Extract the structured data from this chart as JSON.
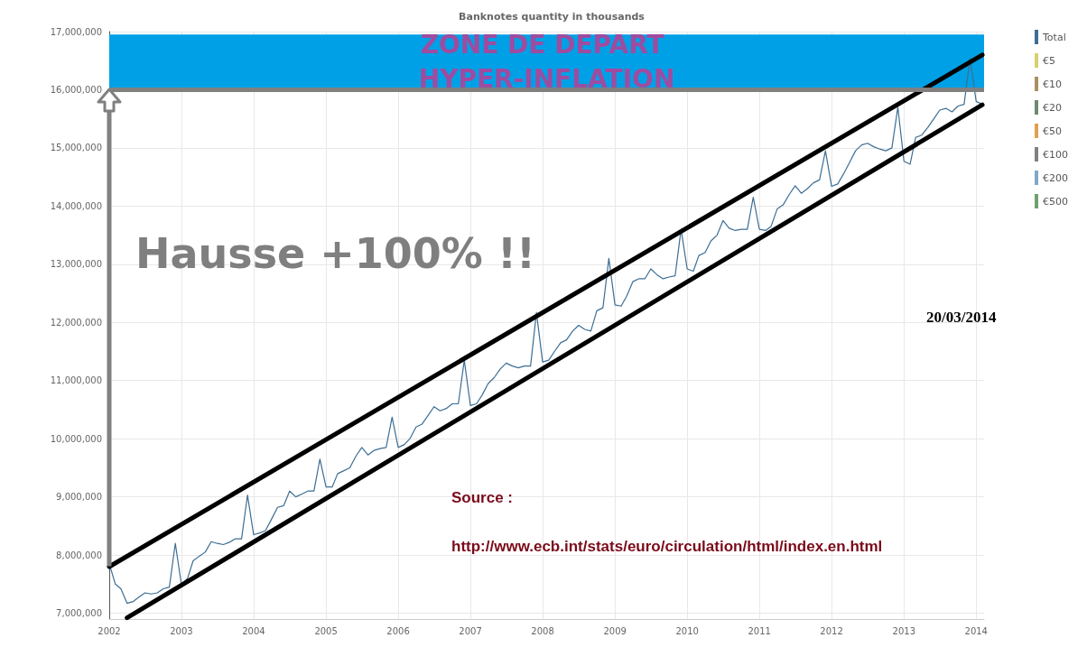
{
  "chart_data": {
    "type": "line",
    "title": "Banknotes quantity in thousands",
    "xlim": [
      "2002-01-01",
      "2014-02-10"
    ],
    "xticks": [
      {
        "value": "2002-01-01",
        "label": "2002"
      },
      {
        "value": "2003-01-01",
        "label": "2003"
      },
      {
        "value": "2004-01-01",
        "label": "2004"
      },
      {
        "value": "2005-01-01",
        "label": "2005"
      },
      {
        "value": "2006-01-01",
        "label": "2006"
      },
      {
        "value": "2007-01-01",
        "label": "2007"
      },
      {
        "value": "2008-01-01",
        "label": "2008"
      },
      {
        "value": "2009-01-01",
        "label": "2009"
      },
      {
        "value": "2010-01-01",
        "label": "2010"
      },
      {
        "value": "2011-01-01",
        "label": "2011"
      },
      {
        "value": "2012-01-01",
        "label": "2012"
      },
      {
        "value": "2013-01-01",
        "label": "2013"
      },
      {
        "value": "2014-01-01",
        "label": "2014"
      }
    ],
    "ylim": [
      6900000,
      17000000
    ],
    "yticks": [
      {
        "value": 7000000,
        "label": "7,000,000"
      },
      {
        "value": 8000000,
        "label": "8,000,000"
      },
      {
        "value": 9000000,
        "label": "9,000,000"
      },
      {
        "value": 10000000,
        "label": "10,000,000"
      },
      {
        "value": 11000000,
        "label": "11,000,000"
      },
      {
        "value": 12000000,
        "label": "12,000,000"
      },
      {
        "value": 13000000,
        "label": "13,000,000"
      },
      {
        "value": 14000000,
        "label": "14,000,000"
      },
      {
        "value": 15000000,
        "label": "15,000,000"
      },
      {
        "value": 16000000,
        "label": "16,000,000"
      },
      {
        "value": 17000000,
        "label": "17,000,000"
      }
    ],
    "x": [
      "2002-01",
      "2002-02",
      "2002-03",
      "2002-04",
      "2002-05",
      "2002-06",
      "2002-07",
      "2002-08",
      "2002-09",
      "2002-10",
      "2002-11",
      "2002-12",
      "2003-01",
      "2003-02",
      "2003-03",
      "2003-04",
      "2003-05",
      "2003-06",
      "2003-07",
      "2003-08",
      "2003-09",
      "2003-10",
      "2003-11",
      "2003-12",
      "2004-01",
      "2004-02",
      "2004-03",
      "2004-04",
      "2004-05",
      "2004-06",
      "2004-07",
      "2004-08",
      "2004-09",
      "2004-10",
      "2004-11",
      "2004-12",
      "2005-01",
      "2005-02",
      "2005-03",
      "2005-04",
      "2005-05",
      "2005-06",
      "2005-07",
      "2005-08",
      "2005-09",
      "2005-10",
      "2005-11",
      "2005-12",
      "2006-01",
      "2006-02",
      "2006-03",
      "2006-04",
      "2006-05",
      "2006-06",
      "2006-07",
      "2006-08",
      "2006-09",
      "2006-10",
      "2006-11",
      "2006-12",
      "2007-01",
      "2007-02",
      "2007-03",
      "2007-04",
      "2007-05",
      "2007-06",
      "2007-07",
      "2007-08",
      "2007-09",
      "2007-10",
      "2007-11",
      "2007-12",
      "2008-01",
      "2008-02",
      "2008-03",
      "2008-04",
      "2008-05",
      "2008-06",
      "2008-07",
      "2008-08",
      "2008-09",
      "2008-10",
      "2008-11",
      "2008-12",
      "2009-01",
      "2009-02",
      "2009-03",
      "2009-04",
      "2009-05",
      "2009-06",
      "2009-07",
      "2009-08",
      "2009-09",
      "2009-10",
      "2009-11",
      "2009-12",
      "2010-01",
      "2010-02",
      "2010-03",
      "2010-04",
      "2010-05",
      "2010-06",
      "2010-07",
      "2010-08",
      "2010-09",
      "2010-10",
      "2010-11",
      "2010-12",
      "2011-01",
      "2011-02",
      "2011-03",
      "2011-04",
      "2011-05",
      "2011-06",
      "2011-07",
      "2011-08",
      "2011-09",
      "2011-10",
      "2011-11",
      "2011-12",
      "2012-01",
      "2012-02",
      "2012-03",
      "2012-04",
      "2012-05",
      "2012-06",
      "2012-07",
      "2012-08",
      "2012-09",
      "2012-10",
      "2012-11",
      "2012-12",
      "2013-01",
      "2013-02",
      "2013-03",
      "2013-04",
      "2013-05",
      "2013-06",
      "2013-07",
      "2013-08",
      "2013-09",
      "2013-10",
      "2013-11",
      "2013-12",
      "2014-01",
      "2014-02"
    ],
    "series": [
      {
        "name": "Total",
        "color": "#3d6e94",
        "values": [
          7850000,
          7500000,
          7420000,
          7170000,
          7200000,
          7280000,
          7350000,
          7330000,
          7350000,
          7420000,
          7450000,
          8200000,
          7490000,
          7600000,
          7900000,
          7980000,
          8050000,
          8230000,
          8200000,
          8180000,
          8220000,
          8280000,
          8280000,
          9030000,
          8350000,
          8380000,
          8420000,
          8620000,
          8820000,
          8850000,
          9100000,
          9000000,
          9050000,
          9100000,
          9100000,
          9650000,
          9170000,
          9170000,
          9400000,
          9450000,
          9500000,
          9700000,
          9850000,
          9720000,
          9800000,
          9830000,
          9850000,
          10370000,
          9850000,
          9900000,
          10000000,
          10200000,
          10250000,
          10400000,
          10550000,
          10480000,
          10520000,
          10600000,
          10600000,
          11350000,
          10570000,
          10600000,
          10750000,
          10950000,
          11050000,
          11200000,
          11300000,
          11250000,
          11220000,
          11250000,
          11250000,
          12170000,
          11320000,
          11350000,
          11500000,
          11650000,
          11700000,
          11850000,
          11950000,
          11880000,
          11850000,
          12200000,
          12250000,
          13100000,
          12300000,
          12280000,
          12450000,
          12700000,
          12750000,
          12750000,
          12920000,
          12820000,
          12750000,
          12780000,
          12800000,
          13600000,
          12920000,
          12880000,
          13150000,
          13200000,
          13400000,
          13500000,
          13750000,
          13620000,
          13580000,
          13600000,
          13600000,
          14150000,
          13600000,
          13580000,
          13650000,
          13950000,
          14020000,
          14200000,
          14350000,
          14220000,
          14300000,
          14400000,
          14450000,
          14950000,
          14340000,
          14380000,
          14550000,
          14750000,
          14950000,
          15050000,
          15080000,
          15020000,
          14980000,
          14950000,
          15000000,
          15700000,
          14770000,
          14720000,
          15180000,
          15220000,
          15350000,
          15500000,
          15650000,
          15680000,
          15620000,
          15720000,
          15750000,
          16540000,
          15800000,
          15750000
        ]
      },
      {
        "type": "line",
        "color": "#000000",
        "x": [
          "2002-01",
          "2014-02"
        ],
        "values": [
          7800000,
          16600000
        ]
      },
      {
        "type": "line",
        "color": "#000000",
        "x": [
          "2002-04",
          "2014-02"
        ],
        "values": [
          6920000,
          15740000
        ]
      },
      {
        "name": "€5",
        "color": "#d8d070",
        "values": [
          null,
          null,
          null,
          null,
          null,
          null,
          null,
          null,
          null,
          null,
          null,
          null,
          null,
          null,
          null,
          null,
          null,
          null,
          null,
          null,
          null,
          null,
          null,
          null,
          null,
          null,
          null,
          null,
          null,
          null,
          null,
          null,
          null,
          null,
          null,
          null,
          null,
          null,
          null,
          null,
          null,
          null,
          null,
          null,
          null,
          null,
          null,
          null,
          null,
          null,
          null,
          null,
          null,
          null,
          null,
          null,
          null,
          null,
          null,
          null,
          null,
          null,
          null,
          null,
          null,
          null,
          null,
          null,
          null,
          null,
          null,
          null,
          null,
          null,
          null,
          null,
          null,
          null,
          null,
          null,
          null,
          null,
          null,
          null,
          null,
          null,
          null,
          null,
          null,
          null,
          null,
          null,
          null,
          null,
          null,
          null,
          null,
          null,
          null,
          null,
          null,
          null,
          null,
          null,
          null,
          null,
          null,
          null,
          null,
          null,
          null,
          null,
          null,
          null,
          null,
          null,
          null,
          null,
          null,
          null,
          null,
          null,
          null,
          null,
          null,
          null,
          null,
          null,
          null,
          null,
          null,
          null,
          null,
          null,
          null,
          null,
          null,
          null,
          null,
          null,
          null,
          null,
          null,
          null,
          null,
          null
        ]
      },
      {
        "name": "€10",
        "color": "#a89060",
        "values": [
          null,
          null,
          null,
          null,
          null,
          null,
          null,
          null,
          null,
          null,
          null,
          null,
          null,
          null,
          null,
          null,
          null,
          null,
          null,
          null,
          null,
          null,
          null,
          null,
          null,
          null,
          null,
          null,
          null,
          null,
          null,
          null,
          null,
          null,
          null,
          null,
          null,
          null,
          null,
          null,
          null,
          null,
          null,
          null,
          null,
          null,
          null,
          null,
          null,
          null,
          null,
          null,
          null,
          null,
          null,
          null,
          null,
          null,
          null,
          null,
          null,
          null,
          null,
          null,
          null,
          null,
          null,
          null,
          null,
          null,
          null,
          null,
          null,
          null,
          null,
          null,
          null,
          null,
          null,
          null,
          null,
          null,
          null,
          null,
          null,
          null,
          null,
          null,
          null,
          null,
          null,
          null,
          null,
          null,
          null,
          null,
          null,
          null,
          null,
          null,
          null,
          null,
          null,
          null,
          null,
          null,
          null,
          null,
          null,
          null,
          null,
          null,
          null,
          null,
          null,
          null,
          null,
          null,
          null,
          null,
          null,
          null,
          null,
          null,
          null,
          null,
          null,
          null,
          null,
          null,
          null,
          null,
          null,
          null,
          null,
          null,
          null,
          null,
          null,
          null,
          null,
          null,
          null,
          null,
          null,
          null
        ]
      },
      {
        "name": "€20",
        "color": "#6e8a6e",
        "values": [
          null,
          null,
          null,
          null,
          null,
          null,
          null,
          null,
          null,
          null,
          null,
          null,
          null,
          null,
          null,
          null,
          null,
          null,
          null,
          null,
          null,
          null,
          null,
          null,
          null,
          null,
          null,
          null,
          null,
          null,
          null,
          null,
          null,
          null,
          null,
          null,
          null,
          null,
          null,
          null,
          null,
          null,
          null,
          null,
          null,
          null,
          null,
          null,
          null,
          null,
          null,
          null,
          null,
          null,
          null,
          null,
          null,
          null,
          null,
          null,
          null,
          null,
          null,
          null,
          null,
          null,
          null,
          null,
          null,
          null,
          null,
          null,
          null,
          null,
          null,
          null,
          null,
          null,
          null,
          null,
          null,
          null,
          null,
          null,
          null,
          null,
          null,
          null,
          null,
          null,
          null,
          null,
          null,
          null,
          null,
          null,
          null,
          null,
          null,
          null,
          null,
          null,
          null,
          null,
          null,
          null,
          null,
          null,
          null,
          null,
          null,
          null,
          null,
          null,
          null,
          null,
          null,
          null,
          null,
          null,
          null,
          null,
          null,
          null,
          null,
          null,
          null,
          null,
          null,
          null,
          null,
          null,
          null,
          null,
          null,
          null,
          null,
          null,
          null,
          null,
          null,
          null,
          null,
          null,
          null,
          null
        ]
      },
      {
        "name": "€50",
        "color": "#e0a050",
        "values": [
          null,
          null,
          null,
          null,
          null,
          null,
          null,
          null,
          null,
          null,
          null,
          null,
          null,
          null,
          null,
          null,
          null,
          null,
          null,
          null,
          null,
          null,
          null,
          null,
          null,
          null,
          null,
          null,
          null,
          null,
          null,
          null,
          null,
          null,
          null,
          null,
          null,
          null,
          null,
          null,
          null,
          null,
          null,
          null,
          null,
          null,
          null,
          null,
          null,
          null,
          null,
          null,
          null,
          null,
          null,
          null,
          null,
          null,
          null,
          null,
          null,
          null,
          null,
          null,
          null,
          null,
          null,
          null,
          null,
          null,
          null,
          null,
          null,
          null,
          null,
          null,
          null,
          null,
          null,
          null,
          null,
          null,
          null,
          null,
          null,
          null,
          null,
          null,
          null,
          null,
          null,
          null,
          null,
          null,
          null,
          null,
          null,
          null,
          null,
          null,
          null,
          null,
          null,
          null,
          null,
          null,
          null,
          null,
          null,
          null,
          null,
          null,
          null,
          null,
          null,
          null,
          null,
          null,
          null,
          null,
          null,
          null,
          null,
          null,
          null,
          null,
          null,
          null,
          null,
          null,
          null,
          null,
          null,
          null,
          null,
          null,
          null,
          null,
          null,
          null,
          null,
          null,
          null,
          null,
          null,
          null
        ]
      },
      {
        "name": "€100",
        "color": "#808080",
        "values": [
          null,
          null,
          null,
          null,
          null,
          null,
          null,
          null,
          null,
          null,
          null,
          null,
          null,
          null,
          null,
          null,
          null,
          null,
          null,
          null,
          null,
          null,
          null,
          null,
          null,
          null,
          null,
          null,
          null,
          null,
          null,
          null,
          null,
          null,
          null,
          null,
          null,
          null,
          null,
          null,
          null,
          null,
          null,
          null,
          null,
          null,
          null,
          null,
          null,
          null,
          null,
          null,
          null,
          null,
          null,
          null,
          null,
          null,
          null,
          null,
          null,
          null,
          null,
          null,
          null,
          null,
          null,
          null,
          null,
          null,
          null,
          null,
          null,
          null,
          null,
          null,
          null,
          null,
          null,
          null,
          null,
          null,
          null,
          null,
          null,
          null,
          null,
          null,
          null,
          null,
          null,
          null,
          null,
          null,
          null,
          null,
          null,
          null,
          null,
          null,
          null,
          null,
          null,
          null,
          null,
          null,
          null,
          null,
          null,
          null,
          null,
          null,
          null,
          null,
          null,
          null,
          null,
          null,
          null,
          null,
          null,
          null,
          null,
          null,
          null,
          null,
          null,
          null,
          null,
          null,
          null,
          null,
          null,
          null,
          null,
          null,
          null,
          null,
          null,
          null,
          null,
          null,
          null,
          null,
          null,
          null
        ]
      },
      {
        "name": "€200",
        "color": "#80a8c8",
        "values": [
          null,
          null,
          null,
          null,
          null,
          null,
          null,
          null,
          null,
          null,
          null,
          null,
          null,
          null,
          null,
          null,
          null,
          null,
          null,
          null,
          null,
          null,
          null,
          null,
          null,
          null,
          null,
          null,
          null,
          null,
          null,
          null,
          null,
          null,
          null,
          null,
          null,
          null,
          null,
          null,
          null,
          null,
          null,
          null,
          null,
          null,
          null,
          null,
          null,
          null,
          null,
          null,
          null,
          null,
          null,
          null,
          null,
          null,
          null,
          null,
          null,
          null,
          null,
          null,
          null,
          null,
          null,
          null,
          null,
          null,
          null,
          null,
          null,
          null,
          null,
          null,
          null,
          null,
          null,
          null,
          null,
          null,
          null,
          null,
          null,
          null,
          null,
          null,
          null,
          null,
          null,
          null,
          null,
          null,
          null,
          null,
          null,
          null,
          null,
          null,
          null,
          null,
          null,
          null,
          null,
          null,
          null,
          null,
          null,
          null,
          null,
          null,
          null,
          null,
          null,
          null,
          null,
          null,
          null,
          null,
          null,
          null,
          null,
          null,
          null,
          null,
          null,
          null,
          null,
          null,
          null,
          null,
          null,
          null,
          null,
          null,
          null,
          null,
          null,
          null,
          null,
          null,
          null,
          null,
          null,
          null
        ]
      },
      {
        "name": "€500",
        "color": "#70a070",
        "values": [
          null,
          null,
          null,
          null,
          null,
          null,
          null,
          null,
          null,
          null,
          null,
          null,
          null,
          null,
          null,
          null,
          null,
          null,
          null,
          null,
          null,
          null,
          null,
          null,
          null,
          null,
          null,
          null,
          null,
          null,
          null,
          null,
          null,
          null,
          null,
          null,
          null,
          null,
          null,
          null,
          null,
          null,
          null,
          null,
          null,
          null,
          null,
          null,
          null,
          null,
          null,
          null,
          null,
          null,
          null,
          null,
          null,
          null,
          null,
          null,
          null,
          null,
          null,
          null,
          null,
          null,
          null,
          null,
          null,
          null,
          null,
          null,
          null,
          null,
          null,
          null,
          null,
          null,
          null,
          null,
          null,
          null,
          null,
          null,
          null,
          null,
          null,
          null,
          null,
          null,
          null,
          null,
          null,
          null,
          null,
          null,
          null,
          null,
          null,
          null,
          null,
          null,
          null,
          null,
          null,
          null,
          null,
          null,
          null,
          null,
          null,
          null,
          null,
          null,
          null,
          null,
          null,
          null,
          null,
          null,
          null,
          null,
          null,
          null,
          null,
          null,
          null,
          null,
          null,
          null,
          null,
          null,
          null,
          null,
          null,
          null,
          null,
          null,
          null,
          null,
          null,
          null,
          null,
          null,
          null,
          null
        ]
      }
    ],
    "ref_lines": [
      {
        "axis": "y",
        "value": 16000000,
        "color": "#808080"
      }
    ],
    "bands": [
      {
        "axis": "y",
        "from": 16000000,
        "to": 16950000,
        "label": "ZONE DE DEPART HYPER-INFLATION",
        "color": "#00a0e6"
      }
    ],
    "annotations": [
      "Hausse +100% !!",
      "20/03/2014",
      "Source :",
      "http://www.ecb.int/stats/euro/circulation/html/index.en.html"
    ],
    "grid": true,
    "legend": "right",
    "marker": "none",
    "line_style": "solid"
  }
}
